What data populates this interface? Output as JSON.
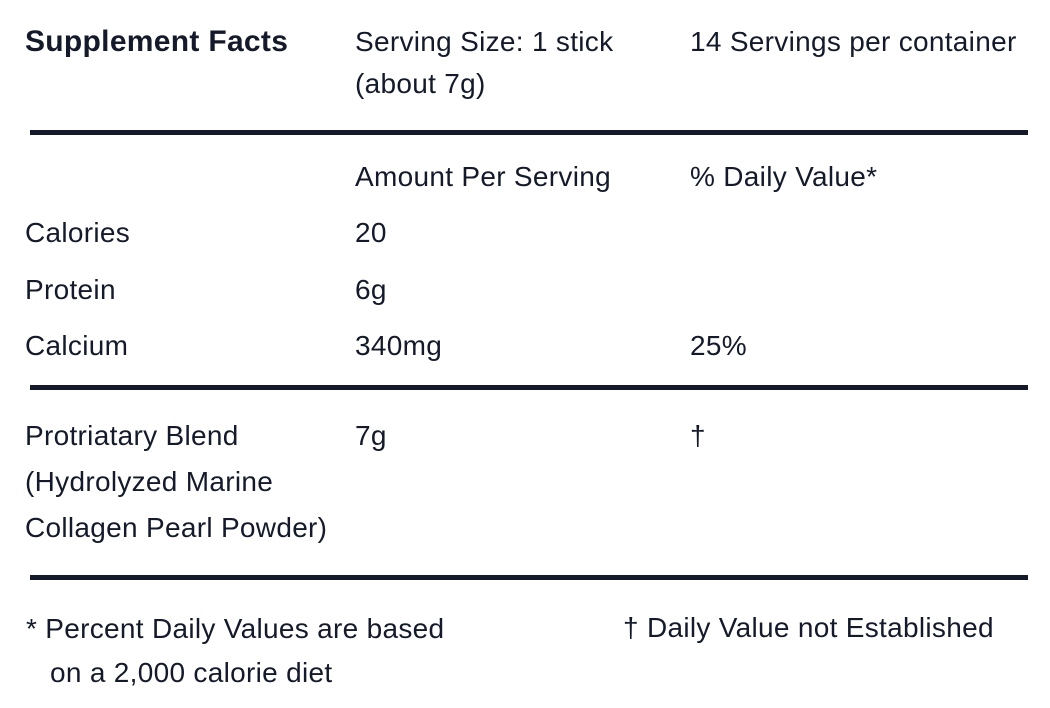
{
  "header": {
    "title": "Supplement Facts",
    "serving_size": "Serving Size: 1 stick (about 7g)",
    "servings": "14 Servings per container"
  },
  "table": {
    "columns": [
      "Amount Per Serving",
      "% Daily Value*"
    ],
    "rows": [
      {
        "name": "Calories",
        "amount": "20"
      },
      {
        "name": "Protein",
        "amount": "6g"
      },
      {
        "name": "Calcium",
        "amount": "340mg",
        "daily_value": "25%"
      }
    ],
    "blend": {
      "name": "Protriatary Blend (Hydrolyzed Marine Collagen Pearl Powder)",
      "amount": "7g",
      "daily_value": "†"
    }
  },
  "footnotes": [
    "* Percent Daily Values are based on a 2,000 calorie diet",
    "† Daily Value not Established"
  ]
}
